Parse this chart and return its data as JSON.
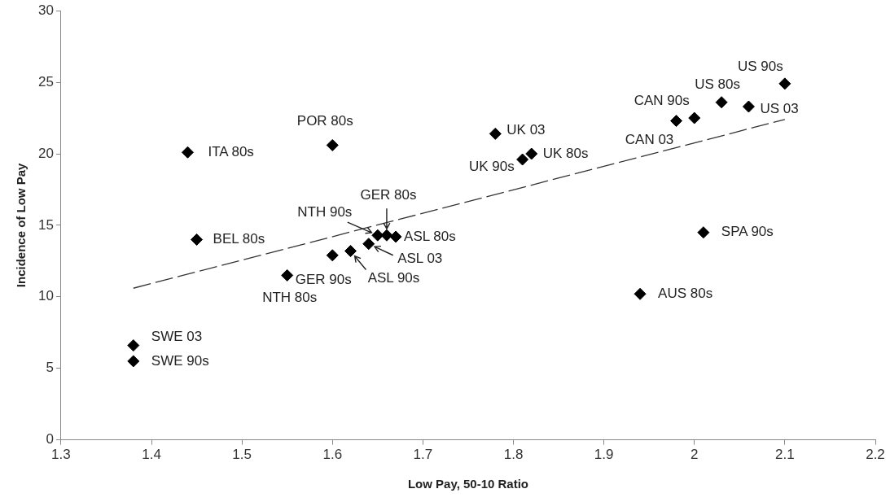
{
  "chart_data": {
    "type": "scatter",
    "xlabel": "Low Pay, 50-10 Ratio",
    "ylabel": "Incidence of Low Pay",
    "xlim": [
      1.3,
      2.2
    ],
    "xticks": [
      1.3,
      1.4,
      1.5,
      1.6,
      1.7,
      1.8,
      1.9,
      2,
      2.1,
      2.2
    ],
    "ylim": [
      0,
      30
    ],
    "yticks": [
      0,
      5,
      10,
      15,
      20,
      25,
      30
    ],
    "grid": false,
    "legend": false,
    "marker": "diamond",
    "series": [
      {
        "type": "scatter",
        "color": "#000000",
        "x": [
          2.1,
          2.03,
          2.06,
          2.0,
          1.98,
          1.78,
          1.82,
          1.81,
          1.44,
          1.6,
          1.45,
          1.38,
          1.38,
          1.55,
          1.6,
          1.62,
          1.64,
          1.65,
          1.66,
          1.67,
          2.01,
          1.94
        ],
        "values": [
          24.9,
          23.6,
          23.3,
          22.5,
          22.3,
          21.4,
          20.0,
          19.6,
          20.1,
          20.6,
          14.0,
          6.6,
          5.5,
          11.5,
          12.9,
          13.2,
          13.7,
          14.3,
          14.3,
          14.2,
          14.5,
          10.2
        ]
      },
      {
        "type": "line",
        "color": "#333333",
        "line_style": "dashed",
        "marker": "none",
        "x": [
          1.38,
          2.1
        ],
        "values": [
          10.6,
          22.4
        ]
      }
    ],
    "annotations": [
      {
        "text": "US 90s",
        "x": 2.1,
        "y": 24.9
      },
      {
        "text": "US 80s",
        "x": 2.03,
        "y": 23.6
      },
      {
        "text": "US 03",
        "x": 2.06,
        "y": 23.3
      },
      {
        "text": "CAN 90s",
        "x": 2.0,
        "y": 22.5
      },
      {
        "text": "CAN 03",
        "x": 1.98,
        "y": 22.3
      },
      {
        "text": "UK 03",
        "x": 1.78,
        "y": 21.4
      },
      {
        "text": "UK 80s",
        "x": 1.82,
        "y": 20.0
      },
      {
        "text": "UK 90s",
        "x": 1.81,
        "y": 19.6
      },
      {
        "text": "ITA 80s",
        "x": 1.44,
        "y": 20.1
      },
      {
        "text": "POR 80s",
        "x": 1.6,
        "y": 20.6
      },
      {
        "text": "BEL 80s",
        "x": 1.45,
        "y": 14.0
      },
      {
        "text": "SWE 03",
        "x": 1.38,
        "y": 6.6
      },
      {
        "text": "SWE 90s",
        "x": 1.38,
        "y": 5.5
      },
      {
        "text": "NTH 80s",
        "x": 1.55,
        "y": 11.5
      },
      {
        "text": "GER 90s",
        "x": 1.6,
        "y": 12.9
      },
      {
        "text": "ASL 90s",
        "x": 1.62,
        "y": 13.2
      },
      {
        "text": "ASL 03",
        "x": 1.64,
        "y": 13.7
      },
      {
        "text": "NTH 90s",
        "x": 1.65,
        "y": 14.3
      },
      {
        "text": "GER 80s",
        "x": 1.66,
        "y": 14.3
      },
      {
        "text": "ASL 80s",
        "x": 1.67,
        "y": 14.2
      },
      {
        "text": "SPA 90s",
        "x": 2.01,
        "y": 14.5
      },
      {
        "text": "AUS 80s",
        "x": 1.94,
        "y": 10.2
      }
    ]
  }
}
